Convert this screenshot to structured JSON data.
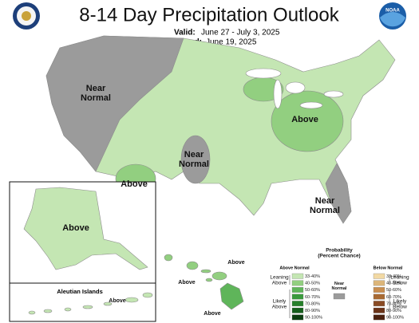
{
  "header": {
    "title": "8-14 Day Precipitation Outlook",
    "valid_label": "Valid:",
    "valid_dates": "June 27 - July 3, 2025",
    "issued_label": "Issued:",
    "issued_date": "June 19, 2025",
    "logo": "NOAA"
  },
  "map_labels": [
    {
      "lines": [
        "Near",
        "Normal"
      ]
    },
    {
      "lines": [
        "Above"
      ]
    },
    {
      "lines": [
        "Near",
        "Normal"
      ]
    },
    {
      "lines": [
        "Above"
      ]
    },
    {
      "lines": [
        "Near",
        "Normal"
      ]
    },
    {
      "lines": [
        "Above"
      ]
    },
    {
      "lines": [
        "Above"
      ]
    },
    {
      "lines": [
        "Above"
      ]
    },
    {
      "lines": [
        "Above"
      ]
    },
    {
      "lines": [
        "Above"
      ]
    }
  ],
  "aleutian_title": "Aleutian Islands",
  "legend": {
    "title_lines": [
      "Probability",
      "(Percent Chance)"
    ],
    "above_heading": "Above Normal",
    "below_heading": "Below Normal",
    "near_label": [
      "Near",
      "Normal"
    ],
    "near_color": "#9b9b9b",
    "leaning_above": [
      "Leaning",
      "Above"
    ],
    "likely_above": [
      "Likely",
      "Above"
    ],
    "leaning_below": [
      "Leaning",
      "Below"
    ],
    "likely_below": [
      "Likely",
      "Below"
    ],
    "above_classes": [
      {
        "label": "33-40%",
        "color": "#c4e6b3"
      },
      {
        "label": "40-50%",
        "color": "#92cf80"
      },
      {
        "label": "50-60%",
        "color": "#5fb55a"
      },
      {
        "label": "60-70%",
        "color": "#3a9a3d"
      },
      {
        "label": "70-80%",
        "color": "#27802b"
      },
      {
        "label": "80-90%",
        "color": "#155e1c"
      },
      {
        "label": "90-100%",
        "color": "#0b3d10"
      }
    ],
    "below_classes": [
      {
        "label": "33-40%",
        "color": "#f2d9a4"
      },
      {
        "label": "40-50%",
        "color": "#dcb67a"
      },
      {
        "label": "50-60%",
        "color": "#c98e4f"
      },
      {
        "label": "60-70%",
        "color": "#a86a33"
      },
      {
        "label": "70-80%",
        "color": "#8a4b24"
      },
      {
        "label": "80-90%",
        "color": "#6b3318"
      },
      {
        "label": "90-100%",
        "color": "#4a200e"
      }
    ]
  }
}
